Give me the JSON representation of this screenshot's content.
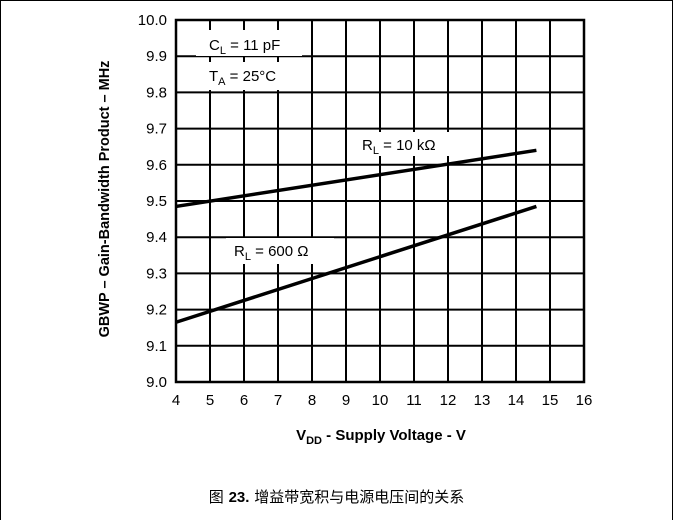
{
  "chart_data": {
    "type": "line",
    "x": [
      4,
      14.6
    ],
    "series": [
      {
        "name": "RL = 10 kΩ",
        "values": [
          9.485,
          9.64
        ]
      },
      {
        "name": "RL = 600 Ω",
        "values": [
          9.165,
          9.485
        ]
      }
    ],
    "xlim": [
      4,
      16
    ],
    "ylim": [
      9.0,
      10.0
    ],
    "xticks": [
      "4",
      "5",
      "6",
      "7",
      "8",
      "9",
      "10",
      "11",
      "12",
      "13",
      "14",
      "15",
      "16"
    ],
    "yticks": [
      "9.0",
      "9.1",
      "9.2",
      "9.3",
      "9.4",
      "9.5",
      "9.6",
      "9.7",
      "9.8",
      "9.9",
      "10.0"
    ],
    "xlabel": {
      "main": "V",
      "sub": "DD",
      "rest": " - Supply Voltage - V"
    },
    "ylabel": "GBWP – Gain-Bandwidth Product – MHz",
    "grid": true,
    "annotations": {
      "cl": {
        "main": "C",
        "sub": "L",
        "rest": " = 11 pF"
      },
      "ta": {
        "main": "T",
        "sub": "A",
        "rest": " = 25°C"
      },
      "rl10k": {
        "main": "R",
        "sub": "L",
        "rest": " = 10 kΩ"
      },
      "rl600": {
        "main": "R",
        "sub": "L",
        "rest": " = 600 Ω"
      }
    }
  },
  "caption": {
    "prefix": "图 ",
    "number": "23.",
    "text": " 增益带宽积与电源电压间的关系"
  }
}
